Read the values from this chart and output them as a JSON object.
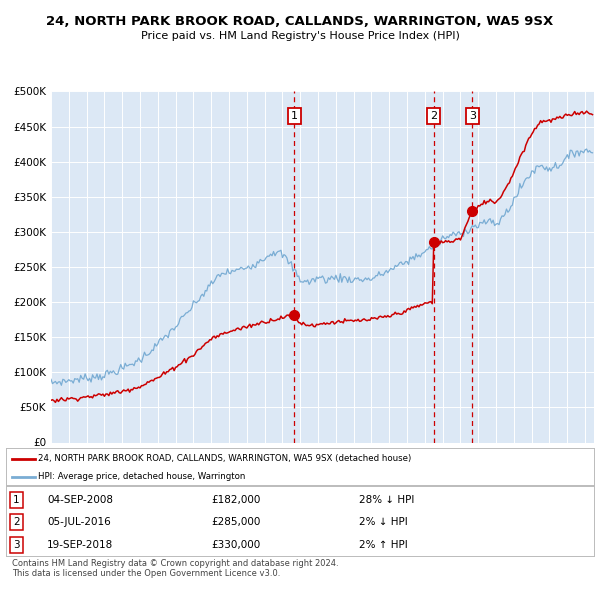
{
  "title1": "24, NORTH PARK BROOK ROAD, CALLANDS, WARRINGTON, WA5 9SX",
  "title2": "Price paid vs. HM Land Registry's House Price Index (HPI)",
  "background_color": "#dce8f5",
  "hpi_color": "#7aadd4",
  "price_color": "#cc0000",
  "sale_marker_color": "#cc0000",
  "dashed_line_color": "#cc0000",
  "sales": [
    {
      "date_yf": 2008.67,
      "price": 182000,
      "label": "1"
    },
    {
      "date_yf": 2016.5,
      "price": 285000,
      "label": "2"
    },
    {
      "date_yf": 2018.67,
      "price": 330000,
      "label": "3"
    }
  ],
  "sale_annotations": [
    {
      "num": "1",
      "date": "04-SEP-2008",
      "price": "£182,000",
      "pct": "28%",
      "dir": "↓",
      "hpi": "HPI"
    },
    {
      "num": "2",
      "date": "05-JUL-2016",
      "price": "£285,000",
      "pct": "2%",
      "dir": "↓",
      "hpi": "HPI"
    },
    {
      "num": "3",
      "date": "19-SEP-2018",
      "price": "£330,000",
      "pct": "2%",
      "dir": "↑",
      "hpi": "HPI"
    }
  ],
  "legend_entries": [
    "24, NORTH PARK BROOK ROAD, CALLANDS, WARRINGTON, WA5 9SX (detached house)",
    "HPI: Average price, detached house, Warrington"
  ],
  "footer": "Contains HM Land Registry data © Crown copyright and database right 2024.\nThis data is licensed under the Open Government Licence v3.0.",
  "ylim": [
    0,
    500000
  ],
  "ytick_vals": [
    0,
    50000,
    100000,
    150000,
    200000,
    250000,
    300000,
    350000,
    400000,
    450000,
    500000
  ],
  "ytick_labels": [
    "£0",
    "£50K",
    "£100K",
    "£150K",
    "£200K",
    "£250K",
    "£300K",
    "£350K",
    "£400K",
    "£450K",
    "£500K"
  ],
  "xlim_start": 1995,
  "xlim_end": 2025.5,
  "hpi_keypoints_x": [
    1995.0,
    1996.0,
    1997.0,
    1998.0,
    1999.0,
    2000.0,
    2001.0,
    2002.0,
    2003.5,
    2004.5,
    2005.5,
    2006.5,
    2007.5,
    2008.0,
    2008.5,
    2009.0,
    2009.5,
    2010.0,
    2010.5,
    2011.0,
    2012.0,
    2013.0,
    2014.0,
    2015.0,
    2016.0,
    2016.5,
    2017.0,
    2017.5,
    2018.0,
    2018.5,
    2019.0,
    2019.5,
    2020.0,
    2020.5,
    2021.0,
    2021.5,
    2022.0,
    2022.5,
    2023.0,
    2023.5,
    2024.0,
    2024.5
  ],
  "hpi_keypoints_y": [
    85000,
    88000,
    92000,
    96000,
    105000,
    118000,
    140000,
    165000,
    210000,
    240000,
    245000,
    255000,
    272000,
    268000,
    252000,
    232000,
    228000,
    235000,
    232000,
    235000,
    232000,
    233000,
    245000,
    258000,
    272000,
    280000,
    290000,
    295000,
    298000,
    305000,
    310000,
    315000,
    310000,
    325000,
    345000,
    368000,
    385000,
    395000,
    390000,
    395000,
    405000,
    415000
  ],
  "red_keypoints_x": [
    1995.0,
    1996.0,
    1997.0,
    1998.0,
    1999.0,
    2000.0,
    2001.0,
    2002.0,
    2003.0,
    2004.0,
    2005.0,
    2006.0,
    2007.0,
    2007.5,
    2008.0,
    2008.65,
    2008.67,
    2008.75,
    2009.0,
    2009.5,
    2010.0,
    2010.5,
    2011.0,
    2012.0,
    2013.0,
    2014.0,
    2015.0,
    2015.5,
    2016.0,
    2016.48,
    2016.5,
    2016.6,
    2017.0,
    2017.5,
    2018.0,
    2018.65,
    2018.67,
    2018.8,
    2019.0,
    2019.5,
    2020.0,
    2020.5,
    2021.0,
    2021.5,
    2022.0,
    2022.5,
    2023.0,
    2023.5,
    2024.0,
    2024.5
  ],
  "red_keypoints_y": [
    60000,
    62000,
    65000,
    68000,
    73000,
    80000,
    92000,
    108000,
    125000,
    148000,
    158000,
    165000,
    172000,
    175000,
    178000,
    181000,
    182000,
    178000,
    170000,
    167000,
    168000,
    170000,
    172000,
    173000,
    175000,
    180000,
    188000,
    193000,
    198000,
    200000,
    285000,
    285000,
    285000,
    287000,
    290000,
    329000,
    330000,
    330000,
    335000,
    345000,
    342000,
    360000,
    385000,
    415000,
    440000,
    458000,
    458000,
    462000,
    465000,
    470000
  ],
  "noise_seed": 7,
  "hpi_noise_scale": 3000,
  "red_noise_scale": 1500
}
